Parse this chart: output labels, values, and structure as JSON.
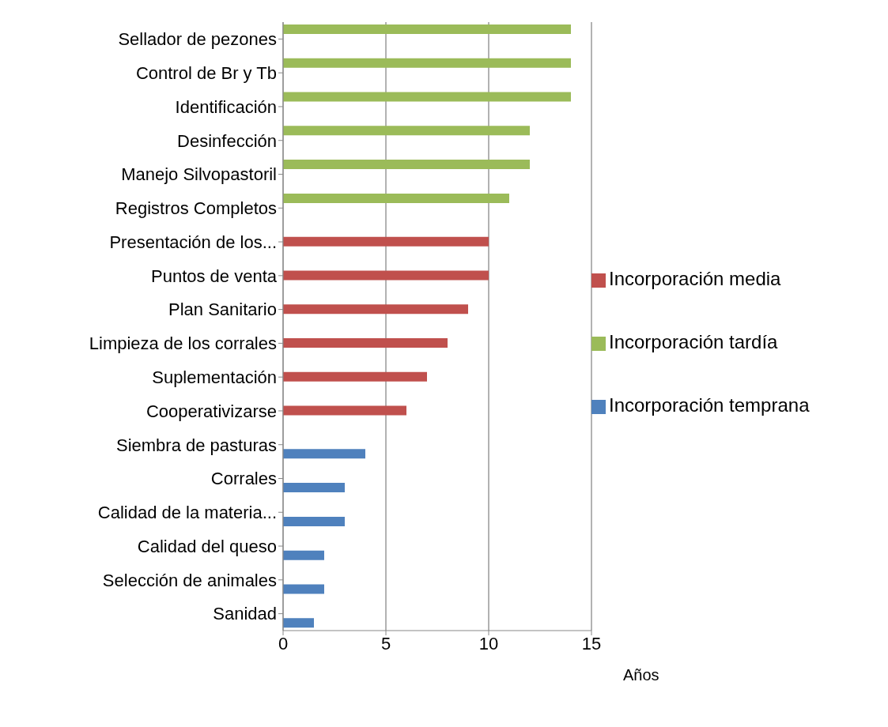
{
  "chart_data": {
    "type": "bar",
    "orientation": "horizontal",
    "xlabel": "Años",
    "categories": [
      "Sellador de pezones",
      "Control de Br y Tb",
      "Identificación",
      "Desinfección",
      "Manejo Silvopastoril",
      "Registros Completos",
      "Presentación de los...",
      "Puntos de venta",
      "Plan Sanitario",
      "Limpieza de los corrales",
      "Suplementación",
      "Cooperativizarse",
      "Siembra de pasturas",
      "Corrales",
      "Calidad de la materia...",
      "Calidad del queso",
      "Selección de animales",
      "Sanidad"
    ],
    "series": [
      {
        "name": "Incorporación tardía",
        "color": "#9bbb59",
        "values": [
          14,
          14,
          14,
          12,
          12,
          11,
          null,
          null,
          null,
          null,
          null,
          null,
          null,
          null,
          null,
          null,
          null,
          null
        ]
      },
      {
        "name": "Incorporación media",
        "color": "#c0504d",
        "values": [
          null,
          null,
          null,
          null,
          null,
          null,
          10,
          10,
          9,
          8,
          7,
          6,
          null,
          null,
          null,
          null,
          null,
          null
        ]
      },
      {
        "name": "Incorporación temprana",
        "color": "#4f81bd",
        "values": [
          null,
          null,
          null,
          null,
          null,
          null,
          null,
          null,
          null,
          null,
          null,
          null,
          4,
          3,
          3,
          2,
          2,
          1.5
        ]
      }
    ],
    "xlim": [
      0,
      15
    ],
    "xticks": [
      0,
      5,
      10,
      15
    ],
    "grid": "x",
    "legend": "right"
  }
}
